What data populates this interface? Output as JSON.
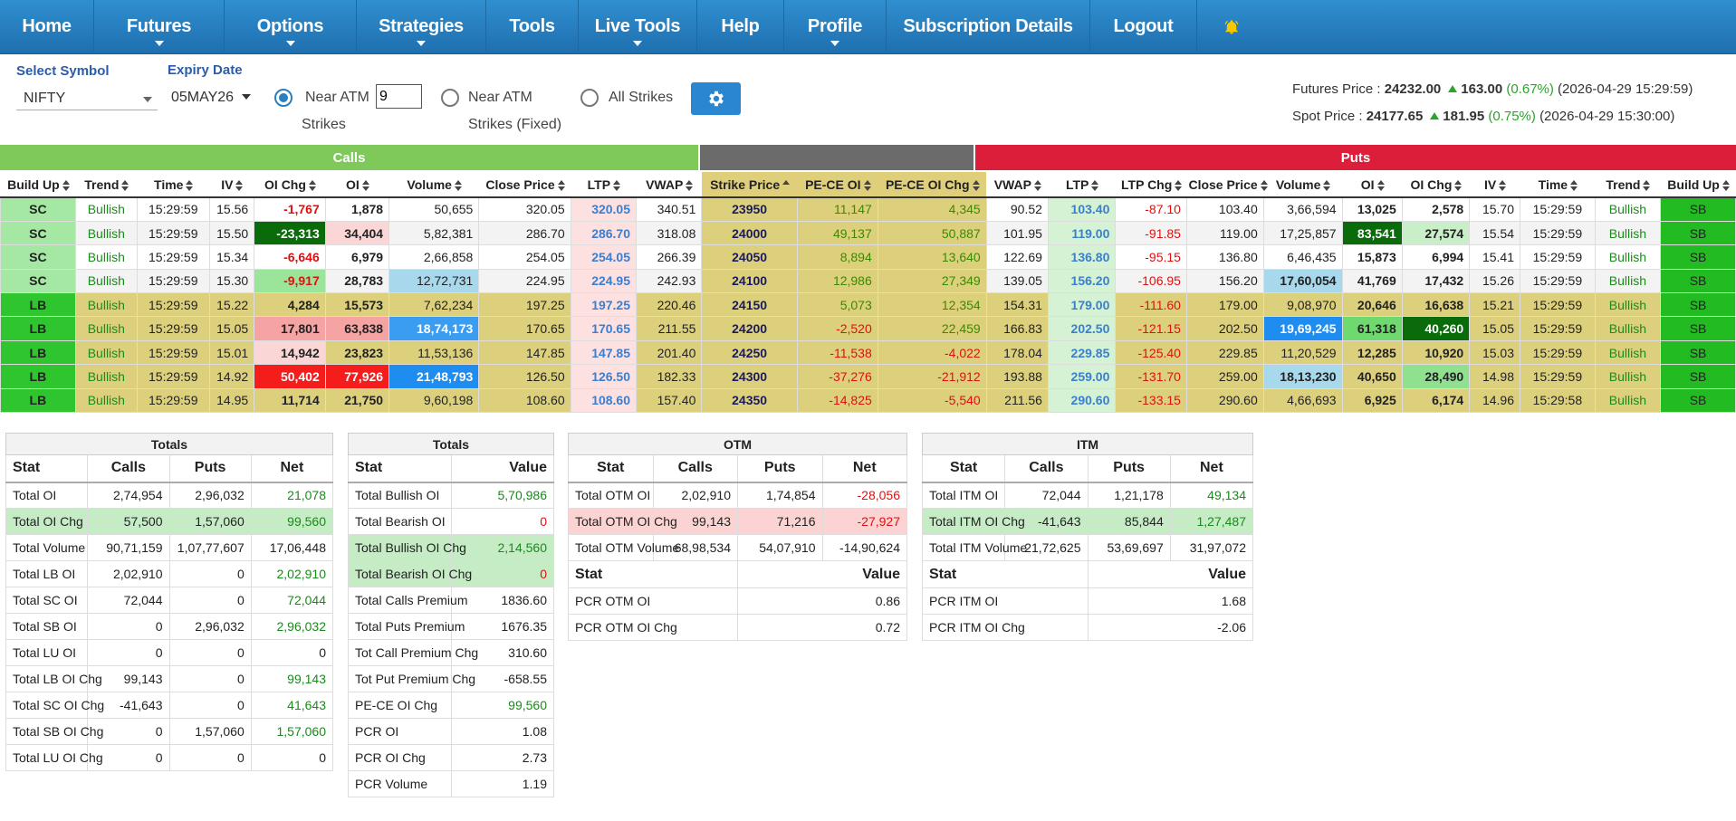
{
  "nav": {
    "items": [
      {
        "label": "Home",
        "caret": false,
        "w": 104
      },
      {
        "label": "Futures",
        "caret": true,
        "w": 144
      },
      {
        "label": "Options",
        "caret": true,
        "w": 146
      },
      {
        "label": "Strategies",
        "caret": true,
        "w": 143
      },
      {
        "label": "Tools",
        "caret": false,
        "w": 102
      },
      {
        "label": "Live Tools",
        "caret": true,
        "w": 131
      },
      {
        "label": "Help",
        "caret": false,
        "w": 96
      },
      {
        "label": "Profile",
        "caret": true,
        "w": 113
      },
      {
        "label": "Subscription Details",
        "caret": false,
        "w": 225
      },
      {
        "label": "Logout",
        "caret": false,
        "w": 118
      }
    ],
    "bell_icon": "bell-icon"
  },
  "controls": {
    "symbol_label": "Select Symbol",
    "symbol_value": "NIFTY",
    "expiry_label": "Expiry Date",
    "expiry_value": "05MAY26",
    "near_atm_label": "Near ATM",
    "near_atm_value": "9",
    "strikes_label": "Strikes",
    "near_atm_fixed_label": "Near ATM",
    "strikes_fixed_label": "Strikes (Fixed)",
    "all_strikes_label": "All Strikes",
    "settings_icon": "gear-icon"
  },
  "prices": {
    "futures_label": "Futures Price :",
    "futures_value": "24232.00",
    "futures_change": "163.00",
    "futures_pct": "(0.67%)",
    "futures_time": "(2026-04-29 15:29:59)",
    "spot_label": "Spot Price :",
    "spot_value": "24177.65",
    "spot_change": "181.95",
    "spot_pct": "(0.75%)",
    "spot_time": "(2026-04-29 15:30:00)"
  },
  "groups": {
    "calls": "Calls",
    "puts": "Puts"
  },
  "columns": [
    "Build Up",
    "Trend",
    "Time",
    "IV",
    "OI Chg",
    "OI",
    "Volume",
    "Close Price",
    "LTP",
    "VWAP",
    "Strike Price",
    "PE-CE OI",
    "PE-CE OI Chg",
    "VWAP",
    "LTP",
    "LTP Chg",
    "Close Price",
    "Volume",
    "OI",
    "OI Chg",
    "IV",
    "Time",
    "Trend",
    "Build Up"
  ],
  "rows": [
    [
      "SC",
      "Bullish",
      "15:29:59",
      "15.56",
      "-1,767",
      "1,878",
      "50,655",
      "320.05",
      "320.05",
      "340.51",
      "23950",
      "11,147",
      "4,345",
      "90.52",
      "103.40",
      "-87.10",
      "103.40",
      "3,66,594",
      "13,025",
      "2,578",
      "15.70",
      "15:29:59",
      "Bullish",
      "SB"
    ],
    [
      "SC",
      "Bullish",
      "15:29:59",
      "15.50",
      "-23,313",
      "34,404",
      "5,82,381",
      "286.70",
      "286.70",
      "318.08",
      "24000",
      "49,137",
      "50,887",
      "101.95",
      "119.00",
      "-91.85",
      "119.00",
      "17,25,857",
      "83,541",
      "27,574",
      "15.54",
      "15:29:59",
      "Bullish",
      "SB"
    ],
    [
      "SC",
      "Bullish",
      "15:29:59",
      "15.34",
      "-6,646",
      "6,979",
      "2,66,858",
      "254.05",
      "254.05",
      "266.39",
      "24050",
      "8,894",
      "13,640",
      "122.69",
      "136.80",
      "-95.15",
      "136.80",
      "6,46,435",
      "15,873",
      "6,994",
      "15.41",
      "15:29:59",
      "Bullish",
      "SB"
    ],
    [
      "SC",
      "Bullish",
      "15:29:59",
      "15.30",
      "-9,917",
      "28,783",
      "12,72,731",
      "224.95",
      "224.95",
      "242.93",
      "24100",
      "12,986",
      "27,349",
      "139.05",
      "156.20",
      "-106.95",
      "156.20",
      "17,60,054",
      "41,769",
      "17,432",
      "15.26",
      "15:29:59",
      "Bullish",
      "SB"
    ],
    [
      "LB",
      "Bullish",
      "15:29:59",
      "15.22",
      "4,284",
      "15,573",
      "7,62,234",
      "197.25",
      "197.25",
      "220.46",
      "24150",
      "5,073",
      "12,354",
      "154.31",
      "179.00",
      "-111.60",
      "179.00",
      "9,08,970",
      "20,646",
      "16,638",
      "15.21",
      "15:29:59",
      "Bullish",
      "SB"
    ],
    [
      "LB",
      "Bullish",
      "15:29:59",
      "15.05",
      "17,801",
      "63,838",
      "18,74,173",
      "170.65",
      "170.65",
      "211.55",
      "24200",
      "-2,520",
      "22,459",
      "166.83",
      "202.50",
      "-121.15",
      "202.50",
      "19,69,245",
      "61,318",
      "40,260",
      "15.05",
      "15:29:59",
      "Bullish",
      "SB"
    ],
    [
      "LB",
      "Bullish",
      "15:29:59",
      "15.01",
      "14,942",
      "23,823",
      "11,53,136",
      "147.85",
      "147.85",
      "201.40",
      "24250",
      "-11,538",
      "-4,022",
      "178.04",
      "229.85",
      "-125.40",
      "229.85",
      "11,20,529",
      "12,285",
      "10,920",
      "15.03",
      "15:29:59",
      "Bullish",
      "SB"
    ],
    [
      "LB",
      "Bullish",
      "15:29:59",
      "14.92",
      "50,402",
      "77,926",
      "21,48,793",
      "126.50",
      "126.50",
      "182.33",
      "24300",
      "-37,276",
      "-21,912",
      "193.88",
      "259.00",
      "-131.70",
      "259.00",
      "18,13,230",
      "40,650",
      "28,490",
      "14.98",
      "15:29:59",
      "Bullish",
      "SB"
    ],
    [
      "LB",
      "Bullish",
      "15:29:59",
      "14.95",
      "11,714",
      "21,750",
      "9,60,198",
      "108.60",
      "108.60",
      "157.40",
      "24350",
      "-14,825",
      "-5,540",
      "211.56",
      "290.60",
      "-133.15",
      "290.60",
      "4,66,693",
      "6,925",
      "6,174",
      "14.96",
      "15:29:58",
      "Bullish",
      "SB"
    ]
  ],
  "colors": {
    "calls_header": "#7ec95a",
    "strike_header": "#6b6b6b",
    "puts_header": "#dc1e3a",
    "sb_green": "#22bb22",
    "lb_green": "#2ec52e"
  },
  "totals1": {
    "title": "Totals",
    "headers": [
      "Stat",
      "Calls",
      "Puts",
      "Net"
    ],
    "rows": [
      [
        "Total OI",
        "2,74,954",
        "2,96,032",
        "21,078"
      ],
      [
        "Total OI Chg",
        "57,500",
        "1,57,060",
        "99,560"
      ],
      [
        "Total Volume",
        "90,71,159",
        "1,07,77,607",
        "17,06,448"
      ],
      [
        "Total LB OI",
        "2,02,910",
        "0",
        "2,02,910"
      ],
      [
        "Total SC OI",
        "72,044",
        "0",
        "72,044"
      ],
      [
        "Total SB OI",
        "0",
        "2,96,032",
        "2,96,032"
      ],
      [
        "Total LU OI",
        "0",
        "0",
        "0"
      ],
      [
        "Total LB OI Chg",
        "99,143",
        "0",
        "99,143"
      ],
      [
        "Total SC OI Chg",
        "-41,643",
        "0",
        "41,643"
      ],
      [
        "Total SB OI Chg",
        "0",
        "1,57,060",
        "1,57,060"
      ],
      [
        "Total LU OI Chg",
        "0",
        "0",
        "0"
      ]
    ]
  },
  "totals2": {
    "title": "Totals",
    "headers": [
      "Stat",
      "Value"
    ],
    "rows": [
      [
        "Total Bullish OI",
        "5,70,986"
      ],
      [
        "Total Bearish OI",
        "0"
      ],
      [
        "Total Bullish OI Chg",
        "2,14,560"
      ],
      [
        "Total Bearish OI Chg",
        "0"
      ],
      [
        "Total Calls Premium",
        "1836.60"
      ],
      [
        "Total Puts Premium",
        "1676.35"
      ],
      [
        "Tot Call Premium Chg",
        "310.60"
      ],
      [
        "Tot Put Premium Chg",
        "-658.55"
      ],
      [
        "PE-CE OI Chg",
        "99,560"
      ],
      [
        "PCR OI",
        "1.08"
      ],
      [
        "PCR OI Chg",
        "2.73"
      ],
      [
        "PCR Volume",
        "1.19"
      ]
    ]
  },
  "otm": {
    "title": "OTM",
    "headers": [
      "Stat",
      "Calls",
      "Puts",
      "Net"
    ],
    "rows": [
      [
        "Total OTM OI",
        "2,02,910",
        "1,74,854",
        "-28,056"
      ],
      [
        "Total OTM OI Chg",
        "99,143",
        "71,216",
        "-27,927"
      ],
      [
        "Total OTM Volume",
        "68,98,534",
        "54,07,910",
        "-14,90,624"
      ]
    ],
    "sub_headers": [
      "Stat",
      "Value"
    ],
    "sub_rows": [
      [
        "PCR OTM OI",
        "0.86"
      ],
      [
        "PCR OTM OI Chg",
        "0.72"
      ]
    ]
  },
  "itm": {
    "title": "ITM",
    "headers": [
      "Stat",
      "Calls",
      "Puts",
      "Net"
    ],
    "rows": [
      [
        "Total ITM OI",
        "72,044",
        "1,21,178",
        "49,134"
      ],
      [
        "Total ITM OI Chg",
        "-41,643",
        "85,844",
        "1,27,487"
      ],
      [
        "Total ITM Volume",
        "21,72,625",
        "53,69,697",
        "31,97,072"
      ]
    ],
    "sub_headers": [
      "Stat",
      "Value"
    ],
    "sub_rows": [
      [
        "PCR ITM OI",
        "1.68"
      ],
      [
        "PCR ITM OI Chg",
        "-2.06"
      ]
    ]
  }
}
